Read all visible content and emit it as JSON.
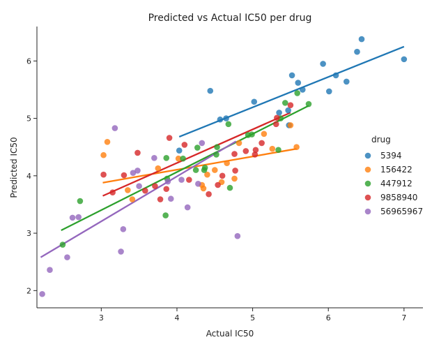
{
  "chart_data": {
    "type": "scatter",
    "title": "Predicted vs Actual IC50 per drug",
    "xlabel": "Actual IC50",
    "ylabel": "Predicted IC50",
    "xlim": [
      2.15,
      7.25
    ],
    "ylim": [
      1.7,
      6.6
    ],
    "xticks": [
      "3",
      "4",
      "5",
      "6",
      "7"
    ],
    "xtick_values": [
      3,
      4,
      5,
      6,
      7
    ],
    "yticks": [
      "2",
      "3",
      "4",
      "5",
      "6"
    ],
    "ytick_values": [
      2,
      3,
      4,
      5,
      6
    ],
    "grid": false,
    "legend_title": "drug",
    "legend_position": "right",
    "series": [
      {
        "name": "5394",
        "color": "#1f77b4",
        "fit": [
          [
            4.03,
            4.68
          ],
          [
            7.0,
            6.25
          ]
        ],
        "points": [
          [
            4.03,
            4.44
          ],
          [
            4.44,
            5.48
          ],
          [
            4.57,
            4.98
          ],
          [
            4.65,
            5.0
          ],
          [
            5.02,
            5.29
          ],
          [
            5.35,
            5.1
          ],
          [
            5.47,
            5.14
          ],
          [
            5.48,
            4.88
          ],
          [
            5.52,
            5.75
          ],
          [
            5.6,
            5.62
          ],
          [
            5.66,
            5.5
          ],
          [
            5.93,
            5.95
          ],
          [
            6.01,
            5.47
          ],
          [
            6.1,
            5.75
          ],
          [
            6.24,
            5.64
          ],
          [
            6.38,
            6.16
          ],
          [
            6.44,
            6.38
          ],
          [
            7.0,
            6.03
          ]
        ]
      },
      {
        "name": "156422",
        "color": "#ff7f0e",
        "fit": [
          [
            3.02,
            3.88
          ],
          [
            5.58,
            4.47
          ]
        ],
        "points": [
          [
            3.03,
            4.36
          ],
          [
            3.08,
            4.59
          ],
          [
            3.35,
            3.75
          ],
          [
            3.41,
            3.59
          ],
          [
            3.75,
            4.13
          ],
          [
            4.02,
            4.3
          ],
          [
            4.33,
            3.84
          ],
          [
            4.35,
            3.78
          ],
          [
            4.4,
            4.02
          ],
          [
            4.5,
            4.1
          ],
          [
            4.59,
            3.89
          ],
          [
            4.66,
            4.22
          ],
          [
            4.76,
            3.95
          ],
          [
            4.82,
            4.57
          ],
          [
            5.15,
            4.73
          ],
          [
            5.26,
            4.47
          ],
          [
            5.5,
            4.88
          ],
          [
            5.58,
            4.5
          ]
        ]
      },
      {
        "name": "447912",
        "color": "#2ca02c",
        "fit": [
          [
            2.47,
            3.05
          ],
          [
            5.74,
            5.22
          ]
        ],
        "points": [
          [
            2.49,
            2.8
          ],
          [
            2.72,
            3.56
          ],
          [
            3.85,
            3.31
          ],
          [
            3.86,
            4.31
          ],
          [
            3.87,
            3.95
          ],
          [
            4.08,
            4.3
          ],
          [
            4.25,
            4.1
          ],
          [
            4.27,
            4.49
          ],
          [
            4.36,
            4.1
          ],
          [
            4.37,
            4.14
          ],
          [
            4.52,
            4.37
          ],
          [
            4.53,
            4.5
          ],
          [
            4.68,
            4.9
          ],
          [
            4.7,
            3.79
          ],
          [
            4.94,
            4.71
          ],
          [
            4.99,
            4.72
          ],
          [
            5.34,
            4.45
          ],
          [
            5.37,
            5.0
          ],
          [
            5.43,
            5.27
          ],
          [
            5.59,
            5.44
          ],
          [
            5.74,
            5.25
          ]
        ]
      },
      {
        "name": "9858940",
        "color": "#d62728",
        "fit": [
          [
            3.02,
            3.65
          ],
          [
            5.5,
            5.1
          ]
        ],
        "points": [
          [
            3.03,
            4.02
          ],
          [
            3.15,
            3.71
          ],
          [
            3.3,
            4.01
          ],
          [
            3.48,
            4.4
          ],
          [
            3.58,
            3.74
          ],
          [
            3.71,
            3.82
          ],
          [
            3.78,
            3.59
          ],
          [
            3.86,
            3.77
          ],
          [
            3.9,
            4.66
          ],
          [
            4.1,
            4.54
          ],
          [
            4.16,
            3.93
          ],
          [
            4.42,
            3.68
          ],
          [
            4.54,
            3.84
          ],
          [
            4.6,
            4.0
          ],
          [
            4.76,
            4.38
          ],
          [
            4.77,
            4.09
          ],
          [
            4.91,
            4.43
          ],
          [
            5.03,
            4.37
          ],
          [
            5.04,
            4.45
          ],
          [
            5.12,
            4.57
          ],
          [
            5.31,
            4.9
          ],
          [
            5.32,
            5.01
          ],
          [
            5.5,
            5.23
          ]
        ]
      },
      {
        "name": "56965967",
        "color": "#9467bd",
        "fit": [
          [
            2.2,
            2.58
          ],
          [
            4.78,
            4.6
          ]
        ],
        "points": [
          [
            2.22,
            1.94
          ],
          [
            2.32,
            2.36
          ],
          [
            2.55,
            2.58
          ],
          [
            2.62,
            3.27
          ],
          [
            2.7,
            3.28
          ],
          [
            3.18,
            4.83
          ],
          [
            3.26,
            2.68
          ],
          [
            3.29,
            3.07
          ],
          [
            3.42,
            4.05
          ],
          [
            3.48,
            4.09
          ],
          [
            3.5,
            3.82
          ],
          [
            3.7,
            4.31
          ],
          [
            3.88,
            3.9
          ],
          [
            3.92,
            3.6
          ],
          [
            4.06,
            3.93
          ],
          [
            4.14,
            3.45
          ],
          [
            4.28,
            3.86
          ],
          [
            4.33,
            4.57
          ],
          [
            4.8,
            2.95
          ]
        ]
      }
    ]
  }
}
